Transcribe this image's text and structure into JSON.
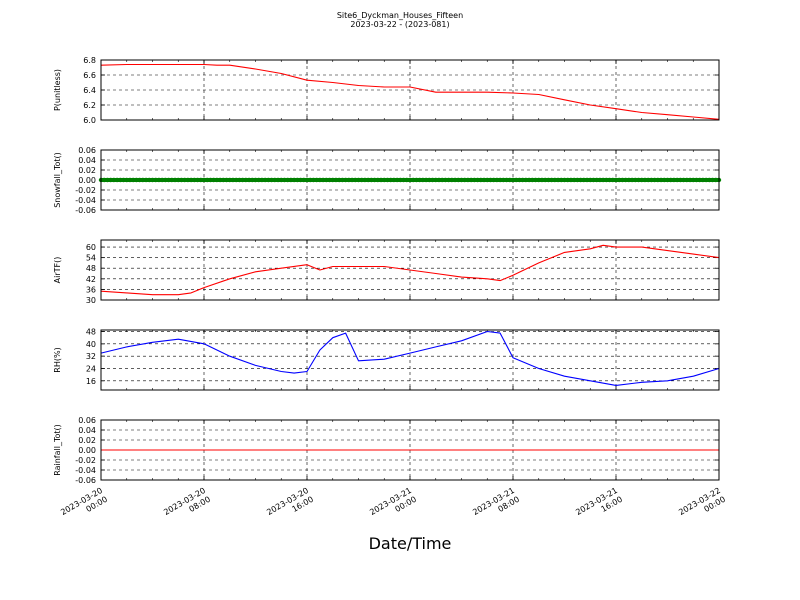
{
  "title": "Site6_Dyckman_Houses_Fifteen",
  "subtitle": "2023-03-22 - (2023-081)",
  "xlabel": "Date/Time",
  "colors": {
    "pressure": "#ff0000",
    "snowfall": "#008000",
    "airtemp": "#ff0000",
    "rh": "#0000ff",
    "rainfall": "#ff0000"
  },
  "chart_data": [
    {
      "type": "line",
      "ylabel": "P(unitless)",
      "ylim": [
        6.0,
        6.8
      ],
      "yticks": [
        "6.8",
        "6.6",
        "6.4",
        "6.2",
        "6.0"
      ],
      "grid": true,
      "x_range": [
        "2023-03-20 00:00",
        "2023-03-22 00:00"
      ],
      "series": [
        {
          "color": "red",
          "x": [
            "2023-03-20 00:00",
            "2023-03-20 02:00",
            "2023-03-20 04:00",
            "2023-03-20 06:00",
            "2023-03-20 08:00",
            "2023-03-20 09:00",
            "2023-03-20 10:00",
            "2023-03-20 12:00",
            "2023-03-20 14:00",
            "2023-03-20 16:00",
            "2023-03-20 18:00",
            "2023-03-20 20:00",
            "2023-03-20 22:00",
            "2023-03-21 00:00",
            "2023-03-21 02:00",
            "2023-03-21 04:00",
            "2023-03-21 06:00",
            "2023-03-21 08:00",
            "2023-03-21 10:00",
            "2023-03-21 12:00",
            "2023-03-21 14:00",
            "2023-03-21 16:00",
            "2023-03-21 18:00",
            "2023-03-21 20:00",
            "2023-03-21 22:00",
            "2023-03-22 00:00"
          ],
          "y": [
            6.73,
            6.74,
            6.74,
            6.74,
            6.74,
            6.73,
            6.73,
            6.68,
            6.62,
            6.53,
            6.5,
            6.46,
            6.44,
            6.44,
            6.37,
            6.37,
            6.37,
            6.36,
            6.34,
            6.27,
            6.2,
            6.15,
            6.1,
            6.07,
            6.04,
            6.01
          ]
        }
      ]
    },
    {
      "type": "line",
      "ylabel": "Snowfall_Tot()",
      "ylim": [
        -0.06,
        0.06
      ],
      "yticks": [
        "0.06",
        "0.04",
        "0.02",
        "0.00",
        "-0.02",
        "-0.04",
        "-0.06"
      ],
      "grid": true,
      "x_range": [
        "2023-03-20 00:00",
        "2023-03-22 00:00"
      ],
      "series": [
        {
          "color": "green",
          "marker": "dot",
          "x": [
            "2023-03-20 00:00",
            "2023-03-22 00:00"
          ],
          "y": [
            0.0,
            0.0
          ]
        }
      ]
    },
    {
      "type": "line",
      "ylabel": "AirTF()",
      "ylim": [
        30,
        64
      ],
      "yticks": [
        "60",
        "54",
        "48",
        "42",
        "36",
        "30"
      ],
      "grid": true,
      "x_range": [
        "2023-03-20 00:00",
        "2023-03-22 00:00"
      ],
      "series": [
        {
          "color": "red",
          "x": [
            "2023-03-20 00:00",
            "2023-03-20 02:00",
            "2023-03-20 04:00",
            "2023-03-20 06:00",
            "2023-03-20 07:00",
            "2023-03-20 08:00",
            "2023-03-20 10:00",
            "2023-03-20 12:00",
            "2023-03-20 14:00",
            "2023-03-20 16:00",
            "2023-03-20 17:00",
            "2023-03-20 18:00",
            "2023-03-20 20:00",
            "2023-03-20 22:00",
            "2023-03-21 00:00",
            "2023-03-21 02:00",
            "2023-03-21 04:00",
            "2023-03-21 06:00",
            "2023-03-21 07:00",
            "2023-03-21 08:00",
            "2023-03-21 10:00",
            "2023-03-21 12:00",
            "2023-03-21 14:00",
            "2023-03-21 15:00",
            "2023-03-21 16:00",
            "2023-03-21 18:00",
            "2023-03-21 20:00",
            "2023-03-21 22:00",
            "2023-03-22 00:00"
          ],
          "y": [
            35,
            34,
            33,
            33,
            34,
            37,
            42,
            46,
            48,
            50,
            47,
            49,
            49,
            49,
            47,
            45,
            43,
            42,
            41,
            44,
            51,
            57,
            59,
            61,
            60,
            60,
            58,
            56,
            54
          ]
        }
      ]
    },
    {
      "type": "line",
      "ylabel": "RH(%)",
      "ylim": [
        10,
        49
      ],
      "yticks": [
        "48",
        "40",
        "32",
        "24",
        "16"
      ],
      "grid": true,
      "x_range": [
        "2023-03-20 00:00",
        "2023-03-22 00:00"
      ],
      "series": [
        {
          "color": "blue",
          "x": [
            "2023-03-20 00:00",
            "2023-03-20 02:00",
            "2023-03-20 04:00",
            "2023-03-20 06:00",
            "2023-03-20 08:00",
            "2023-03-20 10:00",
            "2023-03-20 12:00",
            "2023-03-20 14:00",
            "2023-03-20 15:00",
            "2023-03-20 16:00",
            "2023-03-20 17:00",
            "2023-03-20 18:00",
            "2023-03-20 19:00",
            "2023-03-20 20:00",
            "2023-03-20 22:00",
            "2023-03-21 00:00",
            "2023-03-21 02:00",
            "2023-03-21 04:00",
            "2023-03-21 06:00",
            "2023-03-21 07:00",
            "2023-03-21 08:00",
            "2023-03-21 10:00",
            "2023-03-21 12:00",
            "2023-03-21 14:00",
            "2023-03-21 16:00",
            "2023-03-21 18:00",
            "2023-03-21 20:00",
            "2023-03-21 22:00",
            "2023-03-22 00:00"
          ],
          "y": [
            34,
            38,
            41,
            43,
            40,
            32,
            26,
            22,
            21,
            22,
            36,
            44,
            47,
            29,
            30,
            34,
            38,
            42,
            48,
            47,
            31,
            24,
            19,
            16,
            13,
            15,
            16,
            19,
            24
          ]
        }
      ]
    },
    {
      "type": "line",
      "ylabel": "Rainfall_Tot()",
      "ylim": [
        -0.06,
        0.06
      ],
      "yticks": [
        "0.06",
        "0.04",
        "0.02",
        "0.00",
        "-0.02",
        "-0.04",
        "-0.06"
      ],
      "grid": true,
      "x_range": [
        "2023-03-20 00:00",
        "2023-03-22 00:00"
      ],
      "series": [
        {
          "color": "red",
          "x": [
            "2023-03-20 00:00",
            "2023-03-22 00:00"
          ],
          "y": [
            0.0,
            0.0
          ]
        }
      ]
    }
  ],
  "xticks": [
    {
      "t": "2023-03-20 00:00",
      "line1": "2023-03-20",
      "line2": "00:00"
    },
    {
      "t": "2023-03-20 08:00",
      "line1": "2023-03-20",
      "line2": "08:00"
    },
    {
      "t": "2023-03-20 16:00",
      "line1": "2023-03-20",
      "line2": "16:00"
    },
    {
      "t": "2023-03-21 00:00",
      "line1": "2023-03-21",
      "line2": "00:00"
    },
    {
      "t": "2023-03-21 08:00",
      "line1": "2023-03-21",
      "line2": "08:00"
    },
    {
      "t": "2023-03-21 16:00",
      "line1": "2023-03-21",
      "line2": "16:00"
    },
    {
      "t": "2023-03-22 00:00",
      "line1": "2023-03-22",
      "line2": "00:00"
    }
  ]
}
